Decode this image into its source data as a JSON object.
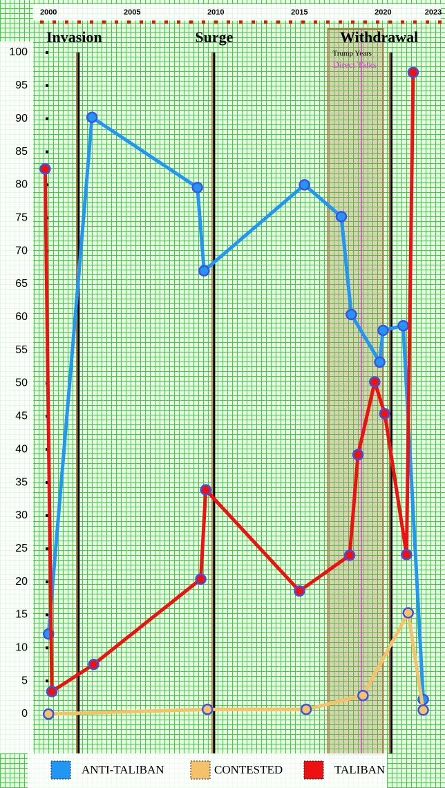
{
  "chart_data": {
    "type": "line",
    "annotations": [
      {
        "text": "Invasion",
        "x": 2001.8
      },
      {
        "text": "Surge",
        "x": 2009.9
      },
      {
        "text": "Withdrawal",
        "x": 2020.5
      }
    ],
    "shaded_span": {
      "label": "Trump Years",
      "range": [
        2016.7,
        2020.0
      ],
      "color": "#b07848"
    },
    "marker_line": {
      "label": "Direct Talks",
      "x": 2018.7,
      "color": "#d040d0"
    },
    "event_lines": [
      2001.8,
      2009.9,
      2020.5
    ],
    "xlim": [
      1997.1,
      2023.7
    ],
    "xticks": [
      2000,
      2005,
      2010,
      2015,
      2020,
      2023
    ],
    "ylim": [
      0,
      100
    ],
    "yticks": [
      0,
      5,
      10,
      15,
      20,
      25,
      30,
      35,
      40,
      45,
      50,
      55,
      60,
      65,
      70,
      75,
      80,
      85,
      90,
      95,
      100
    ],
    "series": [
      {
        "name": "ANTI-TALIBAN",
        "color": "#2196f3",
        "x": [
          2000.0,
          2002.6,
          2008.9,
          2009.3,
          2015.3,
          2017.5,
          2018.1,
          2019.8,
          2020.0,
          2021.2,
          2022.4
        ],
        "values": [
          12.1,
          90.2,
          79.6,
          67,
          80,
          75.2,
          60.4,
          53.2,
          58,
          58.7,
          2.2
        ]
      },
      {
        "name": "CONTESTED",
        "color": "#f5c26b",
        "x": [
          2000.0,
          2009.5,
          2015.4,
          2018.8,
          2021.5,
          2022.4
        ],
        "values": [
          0,
          0.7,
          0.7,
          2.8,
          15.3,
          0.6
        ]
      },
      {
        "name": "TALIBAN",
        "color": "#ee1111",
        "x": [
          1999.8,
          2000.2,
          2002.7,
          2009.1,
          2009.4,
          2015.0,
          2018.0,
          2018.5,
          2019.5,
          2020.1,
          2021.4,
          2021.8
        ],
        "values": [
          82.4,
          3.4,
          7.5,
          20.4,
          33.9,
          18.6,
          24,
          39.2,
          50.2,
          45.4,
          24.1,
          97
        ]
      }
    ]
  }
}
